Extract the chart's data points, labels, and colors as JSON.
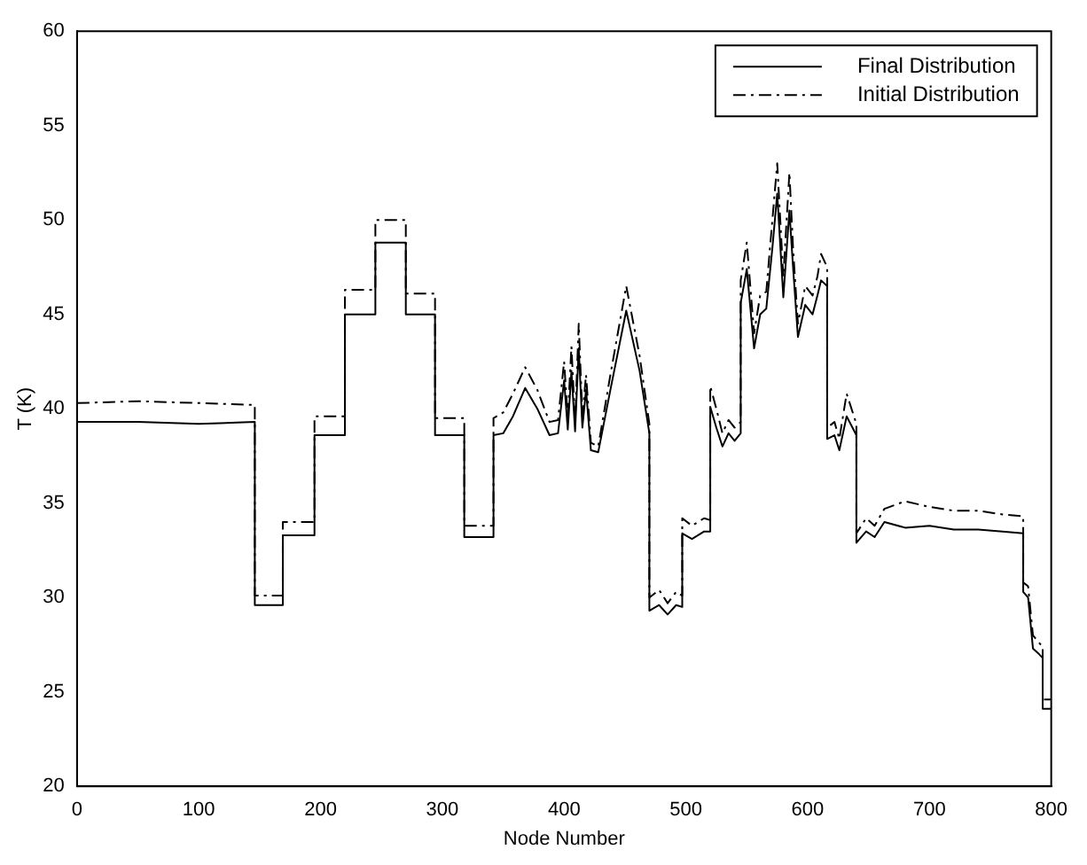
{
  "chart_data": {
    "type": "line",
    "xlabel": "Node Number",
    "ylabel": "T (K)",
    "xlim": [
      0,
      800
    ],
    "xticks": [
      0,
      100,
      200,
      300,
      400,
      500,
      600,
      700,
      800
    ],
    "ylim": [
      20,
      60
    ],
    "yticks": [
      20,
      25,
      30,
      35,
      40,
      45,
      50,
      55,
      60
    ],
    "grid": false,
    "legend": "top right",
    "marker": "none",
    "series": [
      {
        "name": "Final Distribution",
        "color": "#000000",
        "line_style": "solid",
        "x": [
          0,
          50,
          100,
          146,
          146,
          169,
          169,
          195,
          195,
          220,
          220,
          245,
          245,
          270,
          270,
          294,
          294,
          318,
          318,
          342,
          342,
          350,
          358,
          368,
          378,
          388,
          395,
          400,
          403,
          406,
          409,
          412,
          415,
          418,
          422,
          428,
          438,
          451,
          462,
          470,
          470,
          478,
          485,
          492,
          497,
          497,
          505,
          515,
          520,
          520,
          525,
          530,
          535,
          540,
          545,
          545,
          550,
          556,
          561,
          566,
          571,
          575,
          580,
          585,
          588,
          592,
          598,
          604,
          608,
          611,
          616,
          616,
          622,
          626,
          632,
          640,
          640,
          648,
          655,
          663,
          680,
          700,
          720,
          740,
          760,
          777,
          777,
          781,
          785,
          790,
          793,
          793,
          800
        ],
        "values": [
          39.3,
          39.3,
          39.2,
          39.3,
          29.6,
          29.6,
          33.3,
          33.3,
          38.6,
          38.6,
          45.0,
          45.0,
          48.8,
          48.8,
          45.0,
          45.0,
          38.6,
          38.6,
          33.2,
          33.2,
          38.6,
          38.7,
          39.6,
          41.1,
          40.0,
          38.6,
          38.7,
          41.5,
          38.9,
          42.0,
          38.8,
          43.2,
          39.0,
          41.0,
          37.8,
          37.7,
          41.0,
          45.2,
          42.0,
          38.7,
          29.3,
          29.6,
          29.1,
          29.6,
          29.5,
          33.4,
          33.1,
          33.5,
          33.5,
          40.1,
          39.0,
          38.0,
          38.7,
          38.3,
          38.7,
          45.6,
          47.4,
          43.2,
          45.0,
          45.3,
          48.5,
          51.4,
          45.9,
          50.5,
          47.5,
          43.8,
          45.5,
          45.0,
          46.0,
          46.8,
          46.5,
          38.4,
          38.6,
          37.8,
          39.6,
          38.6,
          32.9,
          33.5,
          33.2,
          34.0,
          33.7,
          33.8,
          33.6,
          33.6,
          33.5,
          33.4,
          30.3,
          30.0,
          27.3,
          27.0,
          26.8,
          24.1,
          24.1
        ]
      },
      {
        "name": "Initial Distribution",
        "color": "#000000",
        "line_style": "dashed",
        "x": [
          0,
          50,
          100,
          146,
          146,
          169,
          169,
          195,
          195,
          220,
          220,
          245,
          245,
          270,
          270,
          294,
          294,
          318,
          318,
          342,
          342,
          350,
          358,
          368,
          378,
          388,
          395,
          400,
          403,
          406,
          409,
          412,
          415,
          418,
          422,
          428,
          438,
          451,
          462,
          470,
          470,
          478,
          485,
          492,
          497,
          497,
          505,
          515,
          520,
          520,
          525,
          530,
          535,
          540,
          545,
          545,
          550,
          556,
          561,
          566,
          571,
          575,
          580,
          585,
          588,
          592,
          598,
          604,
          608,
          611,
          616,
          616,
          622,
          626,
          632,
          640,
          640,
          648,
          655,
          663,
          680,
          700,
          720,
          740,
          760,
          777,
          777,
          781,
          785,
          790,
          793,
          793,
          800
        ],
        "values": [
          40.3,
          40.4,
          40.3,
          40.2,
          30.1,
          30.1,
          34.0,
          34.0,
          39.6,
          39.6,
          46.3,
          46.3,
          50.0,
          50.0,
          46.1,
          46.1,
          39.5,
          39.5,
          33.8,
          33.8,
          39.5,
          39.8,
          40.8,
          42.2,
          41.0,
          39.3,
          39.4,
          42.5,
          39.5,
          43.3,
          39.3,
          44.5,
          39.6,
          41.8,
          38.2,
          38.0,
          41.8,
          46.5,
          42.8,
          39.2,
          30.0,
          30.4,
          29.7,
          30.3,
          30.1,
          34.2,
          33.8,
          34.2,
          34.1,
          41.2,
          40.0,
          38.7,
          39.4,
          39.0,
          39.3,
          46.8,
          48.8,
          44.0,
          46.0,
          46.2,
          50.0,
          53.0,
          47.0,
          52.5,
          48.5,
          44.5,
          46.5,
          46.0,
          47.0,
          48.2,
          47.5,
          39.0,
          39.3,
          38.4,
          40.8,
          39.2,
          33.4,
          34.2,
          33.8,
          34.7,
          35.1,
          34.8,
          34.6,
          34.6,
          34.4,
          34.3,
          30.8,
          30.6,
          28.0,
          27.6,
          27.4,
          24.6,
          24.6
        ]
      }
    ]
  }
}
